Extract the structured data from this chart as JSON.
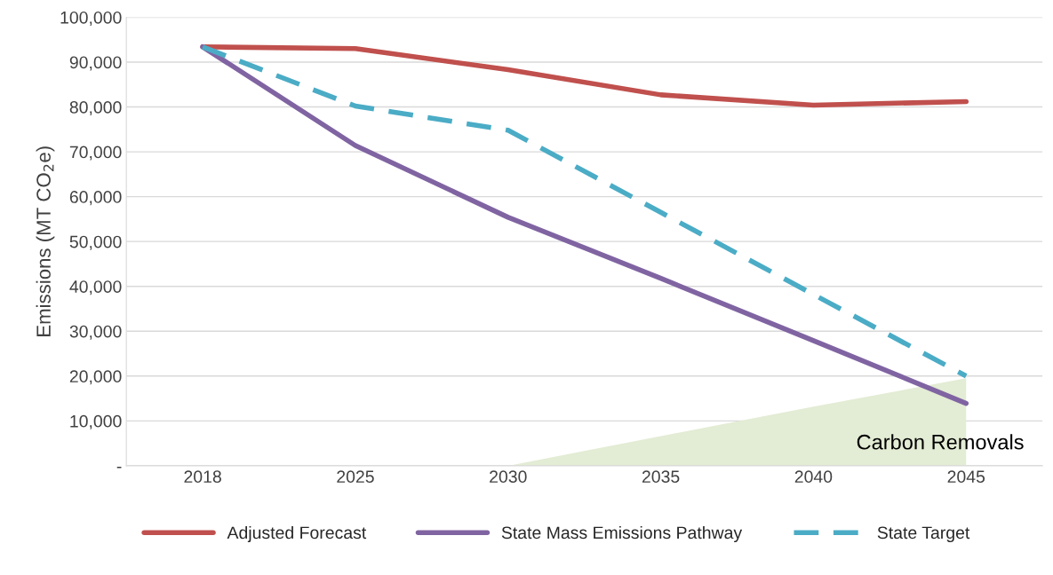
{
  "chart_data": {
    "type": "line",
    "ylabel": "Emissions (MT CO$_{2}$e)",
    "categories": [
      "2018",
      "2025",
      "2030",
      "2035",
      "2040",
      "2045"
    ],
    "series": [
      {
        "name": "Carbon Removals",
        "type": "area",
        "color": "#e3ecd4",
        "values": [
          null,
          null,
          0,
          6600,
          13200,
          19500
        ]
      },
      {
        "name": "Adjusted Forecast",
        "color": "#c0504d",
        "line_style": "solid",
        "values": [
          93400,
          93000,
          88300,
          82700,
          80400,
          81200
        ]
      },
      {
        "name": "State Mass Emissions Pathway",
        "color": "#8064a2",
        "line_style": "solid",
        "values": [
          93400,
          71400,
          55400,
          41800,
          27900,
          13900
        ]
      },
      {
        "name": "State Target",
        "color": "#4bacc6",
        "line_style": "dashed",
        "values": [
          93400,
          80200,
          74800,
          56500,
          38200,
          20000
        ]
      }
    ],
    "ylim": [
      0,
      100000
    ],
    "yticks": [
      {
        "value": 0,
        "label": "-"
      },
      {
        "value": 10000,
        "label": "10,000"
      },
      {
        "value": 20000,
        "label": "20,000"
      },
      {
        "value": 30000,
        "label": "30,000"
      },
      {
        "value": 40000,
        "label": "40,000"
      },
      {
        "value": 50000,
        "label": "50,000"
      },
      {
        "value": 60000,
        "label": "60,000"
      },
      {
        "value": 70000,
        "label": "70,000"
      },
      {
        "value": 80000,
        "label": "80,000"
      },
      {
        "value": 90000,
        "label": "90,000"
      },
      {
        "value": 100000,
        "label": "100,000"
      }
    ],
    "grid": "y",
    "legend": "bottom",
    "marker": "none"
  }
}
